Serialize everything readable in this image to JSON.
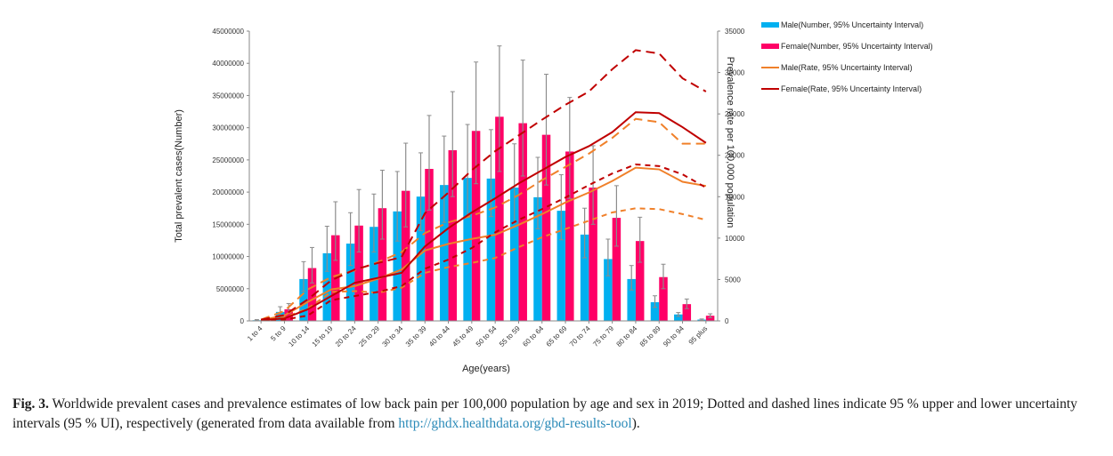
{
  "chart_data": {
    "type": "bar",
    "title": "",
    "xlabel": "Age(years)",
    "ylabel": "Total prevalent cases(Number)",
    "y2label": "Prevalence rate per 100,000 population",
    "ylim": [
      0,
      45000000
    ],
    "y2lim": [
      0,
      35000
    ],
    "yticks": [
      0,
      5000000,
      10000000,
      15000000,
      20000000,
      25000000,
      30000000,
      35000000,
      40000000,
      45000000
    ],
    "y2ticks": [
      0,
      5000,
      10000,
      15000,
      20000,
      25000,
      30000,
      35000
    ],
    "grid": false,
    "legend_position": "top-right",
    "categories": [
      "1 to 4",
      "5 to 9",
      "10 to 14",
      "15 to 19",
      "20 to 24",
      "25 to 29",
      "30 to 34",
      "35 to 39",
      "40 to 44",
      "45 to 49",
      "50 to 54",
      "55 to 59",
      "60 to 64",
      "65 to 69",
      "70 to 74",
      "75 to 79",
      "80 to 84",
      "85 to 89",
      "90 to 94",
      "95 plus"
    ],
    "bar_series": [
      {
        "name": "Male(Number, 95% Uncertainty Interval)",
        "color": "#00b0f0",
        "values": [
          100000,
          1400000,
          6500000,
          10500000,
          12000000,
          14600000,
          17000000,
          19300000,
          21100000,
          22200000,
          22100000,
          20700000,
          19200000,
          17100000,
          13400000,
          9600000,
          6500000,
          2900000,
          1000000,
          200000
        ],
        "upper": [
          200000,
          2200000,
          9200000,
          14700000,
          16800000,
          19700000,
          23200000,
          26100000,
          28700000,
          30500000,
          29700000,
          27500000,
          25400000,
          22700000,
          17500000,
          12700000,
          8600000,
          3900000,
          1300000,
          300000
        ],
        "lower": [
          50000,
          900000,
          4600000,
          7700000,
          8600000,
          10700000,
          12400000,
          14000000,
          15300000,
          16200000,
          16200000,
          15200000,
          14300000,
          12600000,
          9800000,
          7000000,
          4800000,
          2100000,
          700000,
          100000
        ]
      },
      {
        "name": "Female(Number, 95% Uncertainty Interval)",
        "color": "#ff0066",
        "values": [
          100000,
          1800000,
          8200000,
          13300000,
          14800000,
          17500000,
          20200000,
          23600000,
          26500000,
          29500000,
          31700000,
          30700000,
          28900000,
          26300000,
          20700000,
          16000000,
          12400000,
          6800000,
          2600000,
          800000
        ],
        "upper": [
          200000,
          2700000,
          11400000,
          18500000,
          20400000,
          23400000,
          27600000,
          31900000,
          35600000,
          40200000,
          42700000,
          40500000,
          38300000,
          34700000,
          27200000,
          21000000,
          16100000,
          8800000,
          3400000,
          1100000
        ],
        "lower": [
          50000,
          1200000,
          5900000,
          9400000,
          10700000,
          12700000,
          14600000,
          17200000,
          19300000,
          21300000,
          23200000,
          22500000,
          21100000,
          19000000,
          15000000,
          11600000,
          9100000,
          5000000,
          1900000,
          500000
        ]
      }
    ],
    "line_series": [
      {
        "name": "Male(Rate, 95% Uncertainty Interval)",
        "color": "#f0802a",
        "values": [
          100,
          650,
          2300,
          3800,
          4200,
          5100,
          6200,
          8500,
          9300,
          9900,
          10400,
          11600,
          12900,
          14300,
          15500,
          16900,
          18500,
          18300,
          16800,
          16300
        ],
        "upper": [
          150,
          1200,
          3800,
          5300,
          6100,
          7100,
          8300,
          10600,
          11900,
          12700,
          13700,
          15200,
          17000,
          18600,
          20200,
          22100,
          24400,
          24000,
          21400,
          21400
        ],
        "lower": [
          50,
          400,
          1500,
          3500,
          3600,
          3400,
          4000,
          5800,
          6500,
          7000,
          7600,
          8900,
          10100,
          11100,
          12100,
          13100,
          13600,
          13500,
          12900,
          12200
        ]
      },
      {
        "name": "Female(Rate, 95% Uncertainty Interval)",
        "color": "#c00000",
        "values": [
          100,
          300,
          1400,
          3000,
          4600,
          5200,
          5800,
          9000,
          11200,
          13100,
          14800,
          16600,
          18200,
          19800,
          21100,
          22800,
          25200,
          25100,
          23400,
          21500
        ],
        "upper": [
          150,
          700,
          2600,
          4900,
          6200,
          7000,
          7700,
          13000,
          15500,
          18200,
          20500,
          22400,
          24300,
          26100,
          27700,
          30400,
          32700,
          32300,
          29300,
          27700
        ],
        "lower": [
          50,
          150,
          650,
          2500,
          3000,
          3500,
          4200,
          6300,
          7400,
          8800,
          10700,
          12200,
          13500,
          14900,
          16400,
          17800,
          18900,
          18700,
          17700,
          16100
        ]
      }
    ]
  },
  "caption": {
    "label": "Fig. 3.",
    "text": " Worldwide prevalent cases and prevalence estimates of low back pain per 100,000 population by age and sex in 2019; Dotted and dashed lines indicate 95 % upper and lower uncertainty intervals (95 % UI), respectively (generated from data available from ",
    "link": "http://ghdx.healthdata.org/gbd-results-tool",
    "end": ")."
  }
}
